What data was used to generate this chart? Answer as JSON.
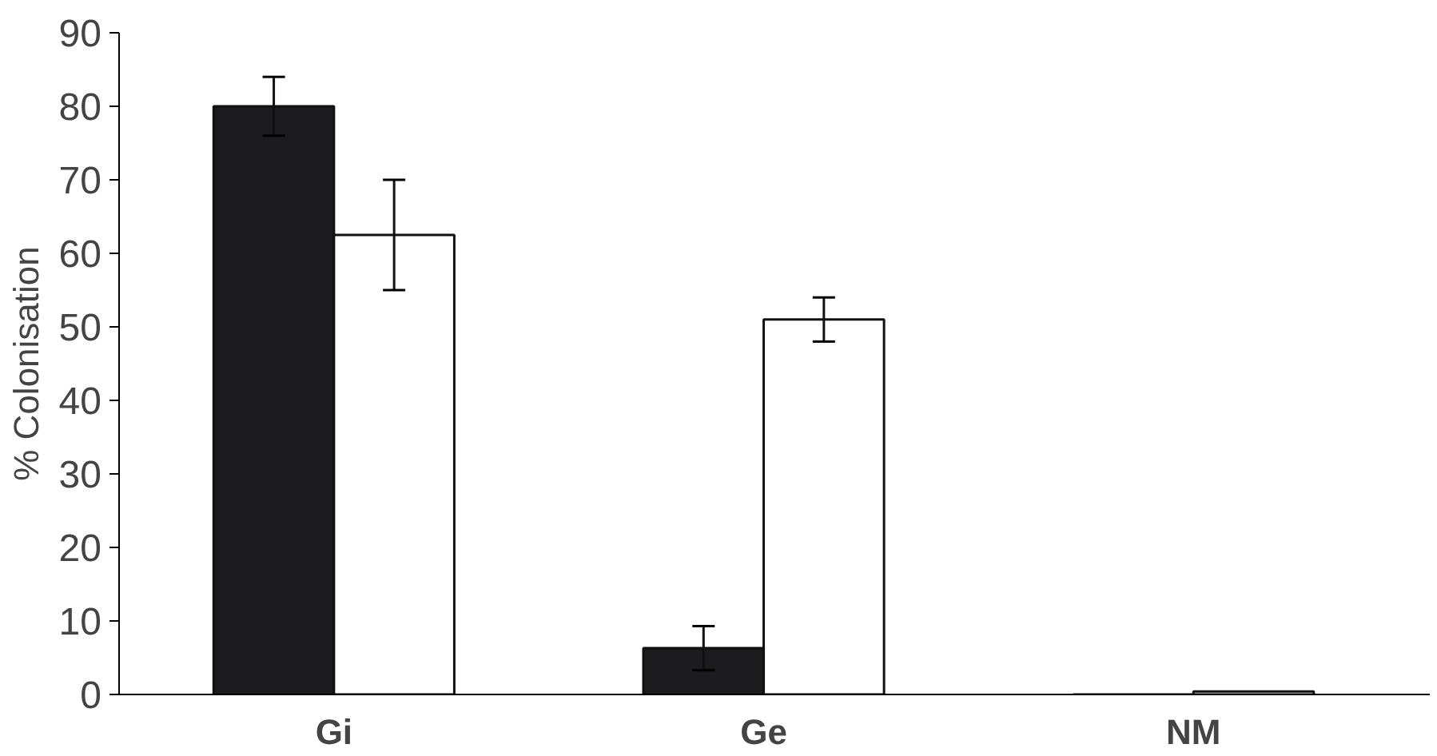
{
  "chart_data": {
    "type": "bar",
    "ylabel": "% Colonisation",
    "categories": [
      "Gi",
      "Ge",
      "NM"
    ],
    "series": [
      {
        "color": "#1c1c1e",
        "values": [
          80,
          6.3,
          0
        ],
        "errors": [
          4,
          3,
          null
        ]
      },
      {
        "color": "#ffffff",
        "values": [
          62.5,
          51,
          0.4
        ],
        "errors": [
          7.5,
          3,
          null
        ]
      }
    ],
    "ylim": [
      0,
      90
    ],
    "yticks": [
      0,
      10,
      20,
      30,
      40,
      50,
      60,
      70,
      80,
      90
    ],
    "grid": false
  }
}
